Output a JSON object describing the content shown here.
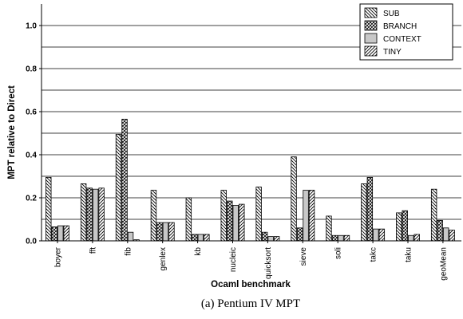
{
  "chart_data": {
    "type": "bar",
    "ylabel": "MPT relative to Direct",
    "xlabel": "Ocaml benchmark",
    "caption": "(a) Pentium IV MPT",
    "ylim": [
      0,
      1.1
    ],
    "yticks": [
      "0.0",
      "0.2",
      "0.4",
      "0.6",
      "0.8",
      "1.0"
    ],
    "grid": true,
    "legend_position": "top-right",
    "categories": [
      "boyer",
      "fft",
      "fib",
      "genlex",
      "kb",
      "nucleic",
      "quicksort",
      "sieve",
      "soli",
      "takc",
      "taku",
      "geoMean"
    ],
    "series": [
      {
        "name": "SUB",
        "pattern": "diag-back",
        "values": [
          0.295,
          0.265,
          0.495,
          0.235,
          0.2,
          0.235,
          0.25,
          0.39,
          0.115,
          0.265,
          0.13,
          0.24
        ]
      },
      {
        "name": "BRANCH",
        "pattern": "crosshatch",
        "values": [
          0.065,
          0.245,
          0.565,
          0.085,
          0.03,
          0.185,
          0.04,
          0.06,
          0.025,
          0.295,
          0.14,
          0.095
        ]
      },
      {
        "name": "CONTEXT",
        "pattern": "solid-gray",
        "values": [
          0.07,
          0.24,
          0.04,
          0.085,
          0.03,
          0.165,
          0.02,
          0.235,
          0.025,
          0.055,
          0.025,
          0.06
        ]
      },
      {
        "name": "TINY",
        "pattern": "diag-forward",
        "values": [
          0.07,
          0.245,
          0.005,
          0.085,
          0.03,
          0.17,
          0.02,
          0.235,
          0.025,
          0.055,
          0.03,
          0.05
        ]
      }
    ]
  }
}
